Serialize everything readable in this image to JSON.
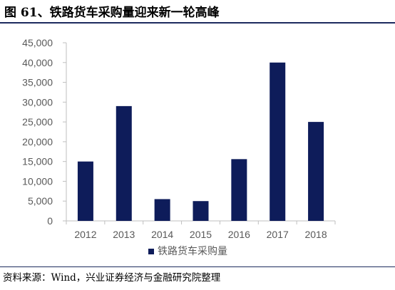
{
  "title": "图 61、铁路货车采购量迎来新一轮高峰",
  "source": "资料来源：Wind，兴业证券经济与金融研究院整理",
  "colors": {
    "bar": "#0e1c5a",
    "rule": "#1c2a5e",
    "axis": "#bfbfbf",
    "text": "#595959"
  },
  "chart_data": {
    "type": "bar",
    "categories": [
      "2012",
      "2013",
      "2014",
      "2015",
      "2016",
      "2017",
      "2018"
    ],
    "series": [
      {
        "name": "铁路货车采购量",
        "values": [
          15000,
          29000,
          5500,
          5000,
          15600,
          40000,
          25000
        ]
      }
    ],
    "yticks": [
      "0",
      "5,000",
      "10,000",
      "15,000",
      "20,000",
      "25,000",
      "30,000",
      "35,000",
      "40,000",
      "45,000"
    ],
    "ylim": [
      0,
      45000
    ],
    "grid": false,
    "legend_position": "bottom-center"
  }
}
